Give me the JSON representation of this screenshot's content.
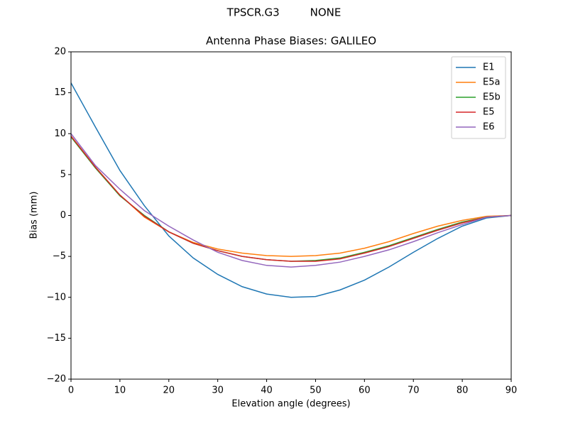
{
  "chart_data": {
    "type": "line",
    "suptitle": "TPSCR.G3         NONE",
    "title": "Antenna Phase Biases: GALILEO",
    "x_label": "Elevation angle (degrees)",
    "y_label": "Bias (mm)",
    "x": [
      0,
      5,
      10,
      15,
      20,
      25,
      30,
      35,
      40,
      45,
      50,
      55,
      60,
      65,
      70,
      75,
      80,
      85,
      90
    ],
    "series": [
      {
        "name": "E1",
        "color": "#1f77b4",
        "values": [
          16.2,
          10.8,
          5.5,
          1.2,
          -2.5,
          -5.2,
          -7.2,
          -8.7,
          -9.6,
          -10.0,
          -9.9,
          -9.1,
          -7.9,
          -6.3,
          -4.5,
          -2.8,
          -1.3,
          -0.3,
          0.0
        ]
      },
      {
        "name": "E5a",
        "color": "#ff7f0e",
        "values": [
          9.7,
          5.9,
          2.5,
          -0.2,
          -2.0,
          -3.3,
          -4.1,
          -4.6,
          -4.9,
          -5.0,
          -4.9,
          -4.6,
          -4.0,
          -3.2,
          -2.2,
          -1.3,
          -0.6,
          -0.1,
          0.0
        ]
      },
      {
        "name": "E5b",
        "color": "#2ca02c",
        "values": [
          9.6,
          5.8,
          2.4,
          0.0,
          -2.0,
          -3.4,
          -4.3,
          -5.0,
          -5.4,
          -5.6,
          -5.5,
          -5.2,
          -4.5,
          -3.7,
          -2.7,
          -1.7,
          -0.8,
          -0.2,
          0.0
        ]
      },
      {
        "name": "E5",
        "color": "#d62728",
        "values": [
          9.7,
          5.9,
          2.5,
          -0.1,
          -2.0,
          -3.4,
          -4.3,
          -5.0,
          -5.4,
          -5.6,
          -5.6,
          -5.3,
          -4.6,
          -3.8,
          -2.8,
          -1.8,
          -0.9,
          -0.2,
          0.0
        ]
      },
      {
        "name": "E6",
        "color": "#9467bd",
        "values": [
          10.0,
          6.1,
          3.2,
          0.6,
          -1.3,
          -3.0,
          -4.5,
          -5.5,
          -6.1,
          -6.3,
          -6.1,
          -5.7,
          -5.0,
          -4.2,
          -3.2,
          -2.1,
          -1.1,
          -0.2,
          0.0
        ]
      }
    ],
    "xlim": [
      0,
      90
    ],
    "xticks": [
      0,
      10,
      20,
      30,
      40,
      50,
      60,
      70,
      80,
      90
    ],
    "ylim": [
      -20,
      20
    ],
    "yticks": [
      {
        "value": -20,
        "label": "−20"
      },
      {
        "value": -15,
        "label": "−15"
      },
      {
        "value": -10,
        "label": "−10"
      },
      {
        "value": -5,
        "label": "−5"
      },
      0,
      5,
      10,
      15,
      20
    ],
    "grid": false,
    "legend": "upper-right"
  }
}
